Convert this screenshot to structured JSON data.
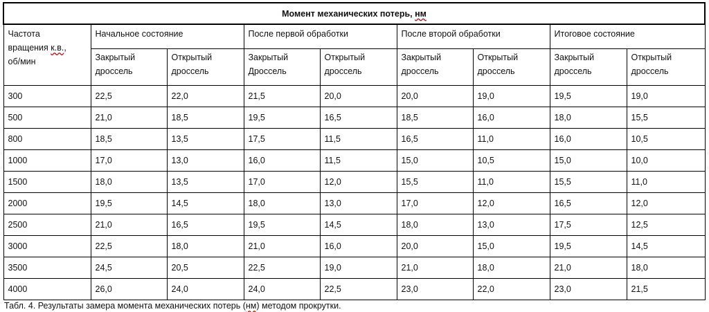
{
  "table": {
    "title": "Момент механических потерь, нм",
    "rpm_header": [
      "Частота",
      "вращения к.в.,",
      "об/мин"
    ],
    "groups": [
      "Начальное состояние",
      "После первой обработки",
      "После второй обработки",
      "Итоговое состояние"
    ],
    "subheaders": [
      [
        "Закрытый",
        "дроссель"
      ],
      [
        "Открытый",
        "дроссель"
      ],
      [
        "Закрытый",
        "Дроссель"
      ],
      [
        "Открытый",
        "дроссель"
      ],
      [
        "Закрытый",
        "дроссель"
      ],
      [
        "Открытый",
        "дроссель"
      ],
      [
        "Закрытый",
        "дроссель"
      ],
      [
        "Открытый",
        "дроссель"
      ]
    ],
    "rows": [
      [
        "300",
        "22,5",
        "22,0",
        "21,5",
        "20,0",
        "20,0",
        "19,0",
        "19,5",
        "19,0"
      ],
      [
        "500",
        "21,0",
        "18,5",
        "19,5",
        "16,5",
        "18,5",
        "16,0",
        "18,0",
        "15,5"
      ],
      [
        "800",
        "18,5",
        "13,5",
        "17,5",
        "11,5",
        "16,5",
        "11,0",
        "16,0",
        "10,5"
      ],
      [
        "1000",
        "17,0",
        "13,0",
        "16,0",
        "11,5",
        "15,0",
        "10,5",
        "15,0",
        "10,0"
      ],
      [
        "1500",
        "18,0",
        "13,5",
        "17,0",
        "12,0",
        "15,5",
        "11,0",
        "15,5",
        "11,0"
      ],
      [
        "2000",
        "19,5",
        "14,5",
        "18,0",
        "13,0",
        "17,0",
        "12,0",
        "16,5",
        "12,0"
      ],
      [
        "2500",
        "21,0",
        "16,5",
        "19,5",
        "14,5",
        "18,0",
        "13,0",
        "17,5",
        "12,5"
      ],
      [
        "3000",
        "22,5",
        "18,0",
        "21,0",
        "16,0",
        "20,0",
        "15,0",
        "19,5",
        "14,5"
      ],
      [
        "3500",
        "24,5",
        "20,5",
        "22,5",
        "19,0",
        "21,0",
        "18,0",
        "21,0",
        "18,0"
      ],
      [
        "4000",
        "26,0",
        "24,0",
        "24,0",
        "22,5",
        "23,0",
        "22,0",
        "23,0",
        "21,5"
      ]
    ]
  },
  "caption": "Табл. 4. Результаты замера момента механических потерь (нм)  методом прокрутки."
}
